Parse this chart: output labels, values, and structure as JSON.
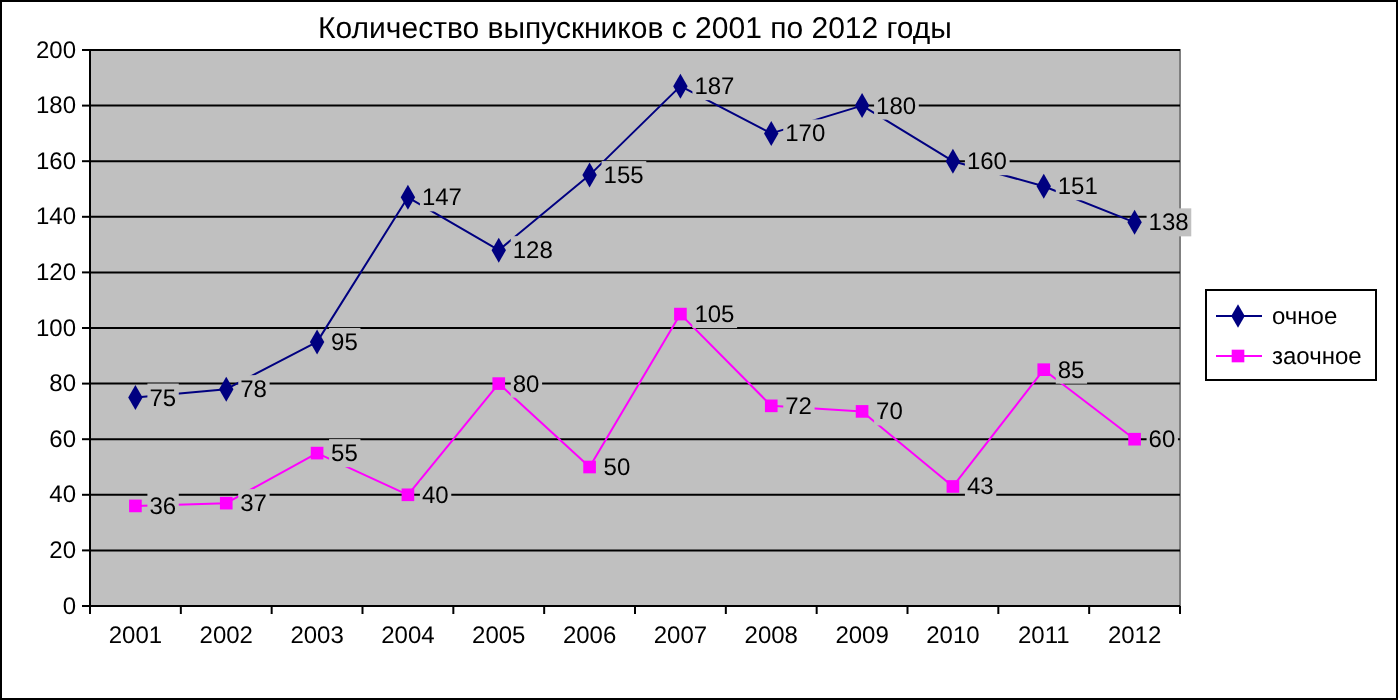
{
  "chart_data": {
    "type": "line",
    "title": "Количество выпускников с 2001 по 2012 годы",
    "categories": [
      "2001",
      "2002",
      "2003",
      "2004",
      "2005",
      "2006",
      "2007",
      "2008",
      "2009",
      "2010",
      "2011",
      "2012"
    ],
    "series": [
      {
        "name": "очное",
        "color": "#000080",
        "marker": "diamond",
        "values": [
          75,
          78,
          95,
          147,
          128,
          155,
          187,
          170,
          180,
          160,
          151,
          138
        ]
      },
      {
        "name": "заочное",
        "color": "#ff00ff",
        "marker": "square",
        "values": [
          36,
          37,
          55,
          40,
          80,
          50,
          105,
          72,
          70,
          43,
          85,
          60
        ]
      }
    ],
    "ylim": [
      0,
      200
    ],
    "yticks": [
      0,
      20,
      40,
      60,
      80,
      100,
      120,
      140,
      160,
      180,
      200
    ],
    "grid": "y",
    "legend": "right",
    "data_labels": true
  }
}
